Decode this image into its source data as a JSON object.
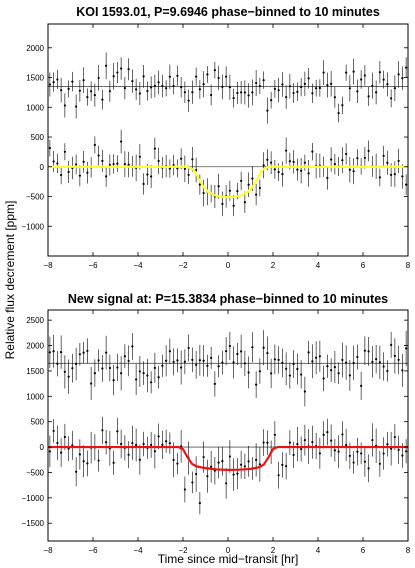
{
  "figure": {
    "ylabel": "Relative flux decrement [ppm]",
    "xlabel": "Time since mid−transit [hr]"
  },
  "chart_data": [
    {
      "type": "scatter",
      "title": "KOI 1593.01, P=9.6946 phase−binned to 10 minutes",
      "xlim": [
        -8,
        8
      ],
      "ylim": [
        -1500,
        2400
      ],
      "xticks": [
        "−8",
        "−6",
        "−4",
        "−2",
        "0",
        "2",
        "4",
        "6",
        "8"
      ],
      "yticks": [
        "−1000",
        "−500",
        "0",
        "500",
        "1000",
        "1500",
        "2000"
      ],
      "xtick_values": [
        -8,
        -6,
        -4,
        -2,
        0,
        2,
        4,
        6,
        8
      ],
      "ytick_values": [
        -1000,
        -500,
        0,
        500,
        1000,
        1500,
        2000
      ],
      "grid": false,
      "reference_lines": [
        0,
        1350
      ],
      "series": [
        {
          "offset": 1350,
          "n_points": 96,
          "scatter": 150,
          "errorbar": 180,
          "depth": 0
        },
        {
          "offset": 0,
          "n_points": 96,
          "scatter": 150,
          "errorbar": 180,
          "depth": 520
        }
      ],
      "model": {
        "color": "#ffff33",
        "points": [
          [
            -8,
            0
          ],
          [
            -1.8,
            0
          ],
          [
            -1.5,
            -60
          ],
          [
            -1.3,
            -200
          ],
          [
            -1.1,
            -330
          ],
          [
            -0.9,
            -420
          ],
          [
            -0.6,
            -480
          ],
          [
            -0.3,
            -505
          ],
          [
            0,
            -510
          ],
          [
            0.3,
            -505
          ],
          [
            0.6,
            -480
          ],
          [
            0.9,
            -420
          ],
          [
            1.1,
            -330
          ],
          [
            1.3,
            -200
          ],
          [
            1.5,
            -60
          ],
          [
            1.8,
            0
          ],
          [
            8,
            0
          ]
        ]
      }
    },
    {
      "type": "scatter",
      "title": "New signal at: P=15.3834 phase−binned to 10 minutes",
      "xlim": [
        -8,
        8
      ],
      "ylim": [
        -1850,
        2700
      ],
      "xticks": [
        "−8",
        "−6",
        "−4",
        "−2",
        "0",
        "2",
        "4",
        "6",
        "8"
      ],
      "yticks": [
        "−1500",
        "−1000",
        "−500",
        "0",
        "500",
        "1000",
        "1500",
        "2000",
        "2500"
      ],
      "xtick_values": [
        -8,
        -6,
        -4,
        -2,
        0,
        2,
        4,
        6,
        8
      ],
      "ytick_values": [
        -1500,
        -1000,
        -500,
        0,
        500,
        1000,
        1500,
        2000,
        2500
      ],
      "grid": false,
      "reference_lines": [
        0,
        1650
      ],
      "series": [
        {
          "offset": 1650,
          "n_points": 96,
          "scatter": 220,
          "errorbar": 280,
          "depth": 0
        },
        {
          "offset": 0,
          "n_points": 96,
          "scatter": 220,
          "errorbar": 280,
          "depth": 450
        }
      ],
      "model": {
        "color": "#ee1111",
        "points": [
          [
            -8,
            0
          ],
          [
            -2.2,
            0
          ],
          [
            -2.0,
            -40
          ],
          [
            -1.8,
            -200
          ],
          [
            -1.6,
            -330
          ],
          [
            -1.4,
            -380
          ],
          [
            -1.0,
            -415
          ],
          [
            -0.5,
            -440
          ],
          [
            0,
            -450
          ],
          [
            0.5,
            -445
          ],
          [
            1.0,
            -430
          ],
          [
            1.4,
            -395
          ],
          [
            1.6,
            -340
          ],
          [
            1.8,
            -200
          ],
          [
            2.0,
            -40
          ],
          [
            2.2,
            0
          ],
          [
            8,
            0
          ]
        ]
      }
    }
  ]
}
